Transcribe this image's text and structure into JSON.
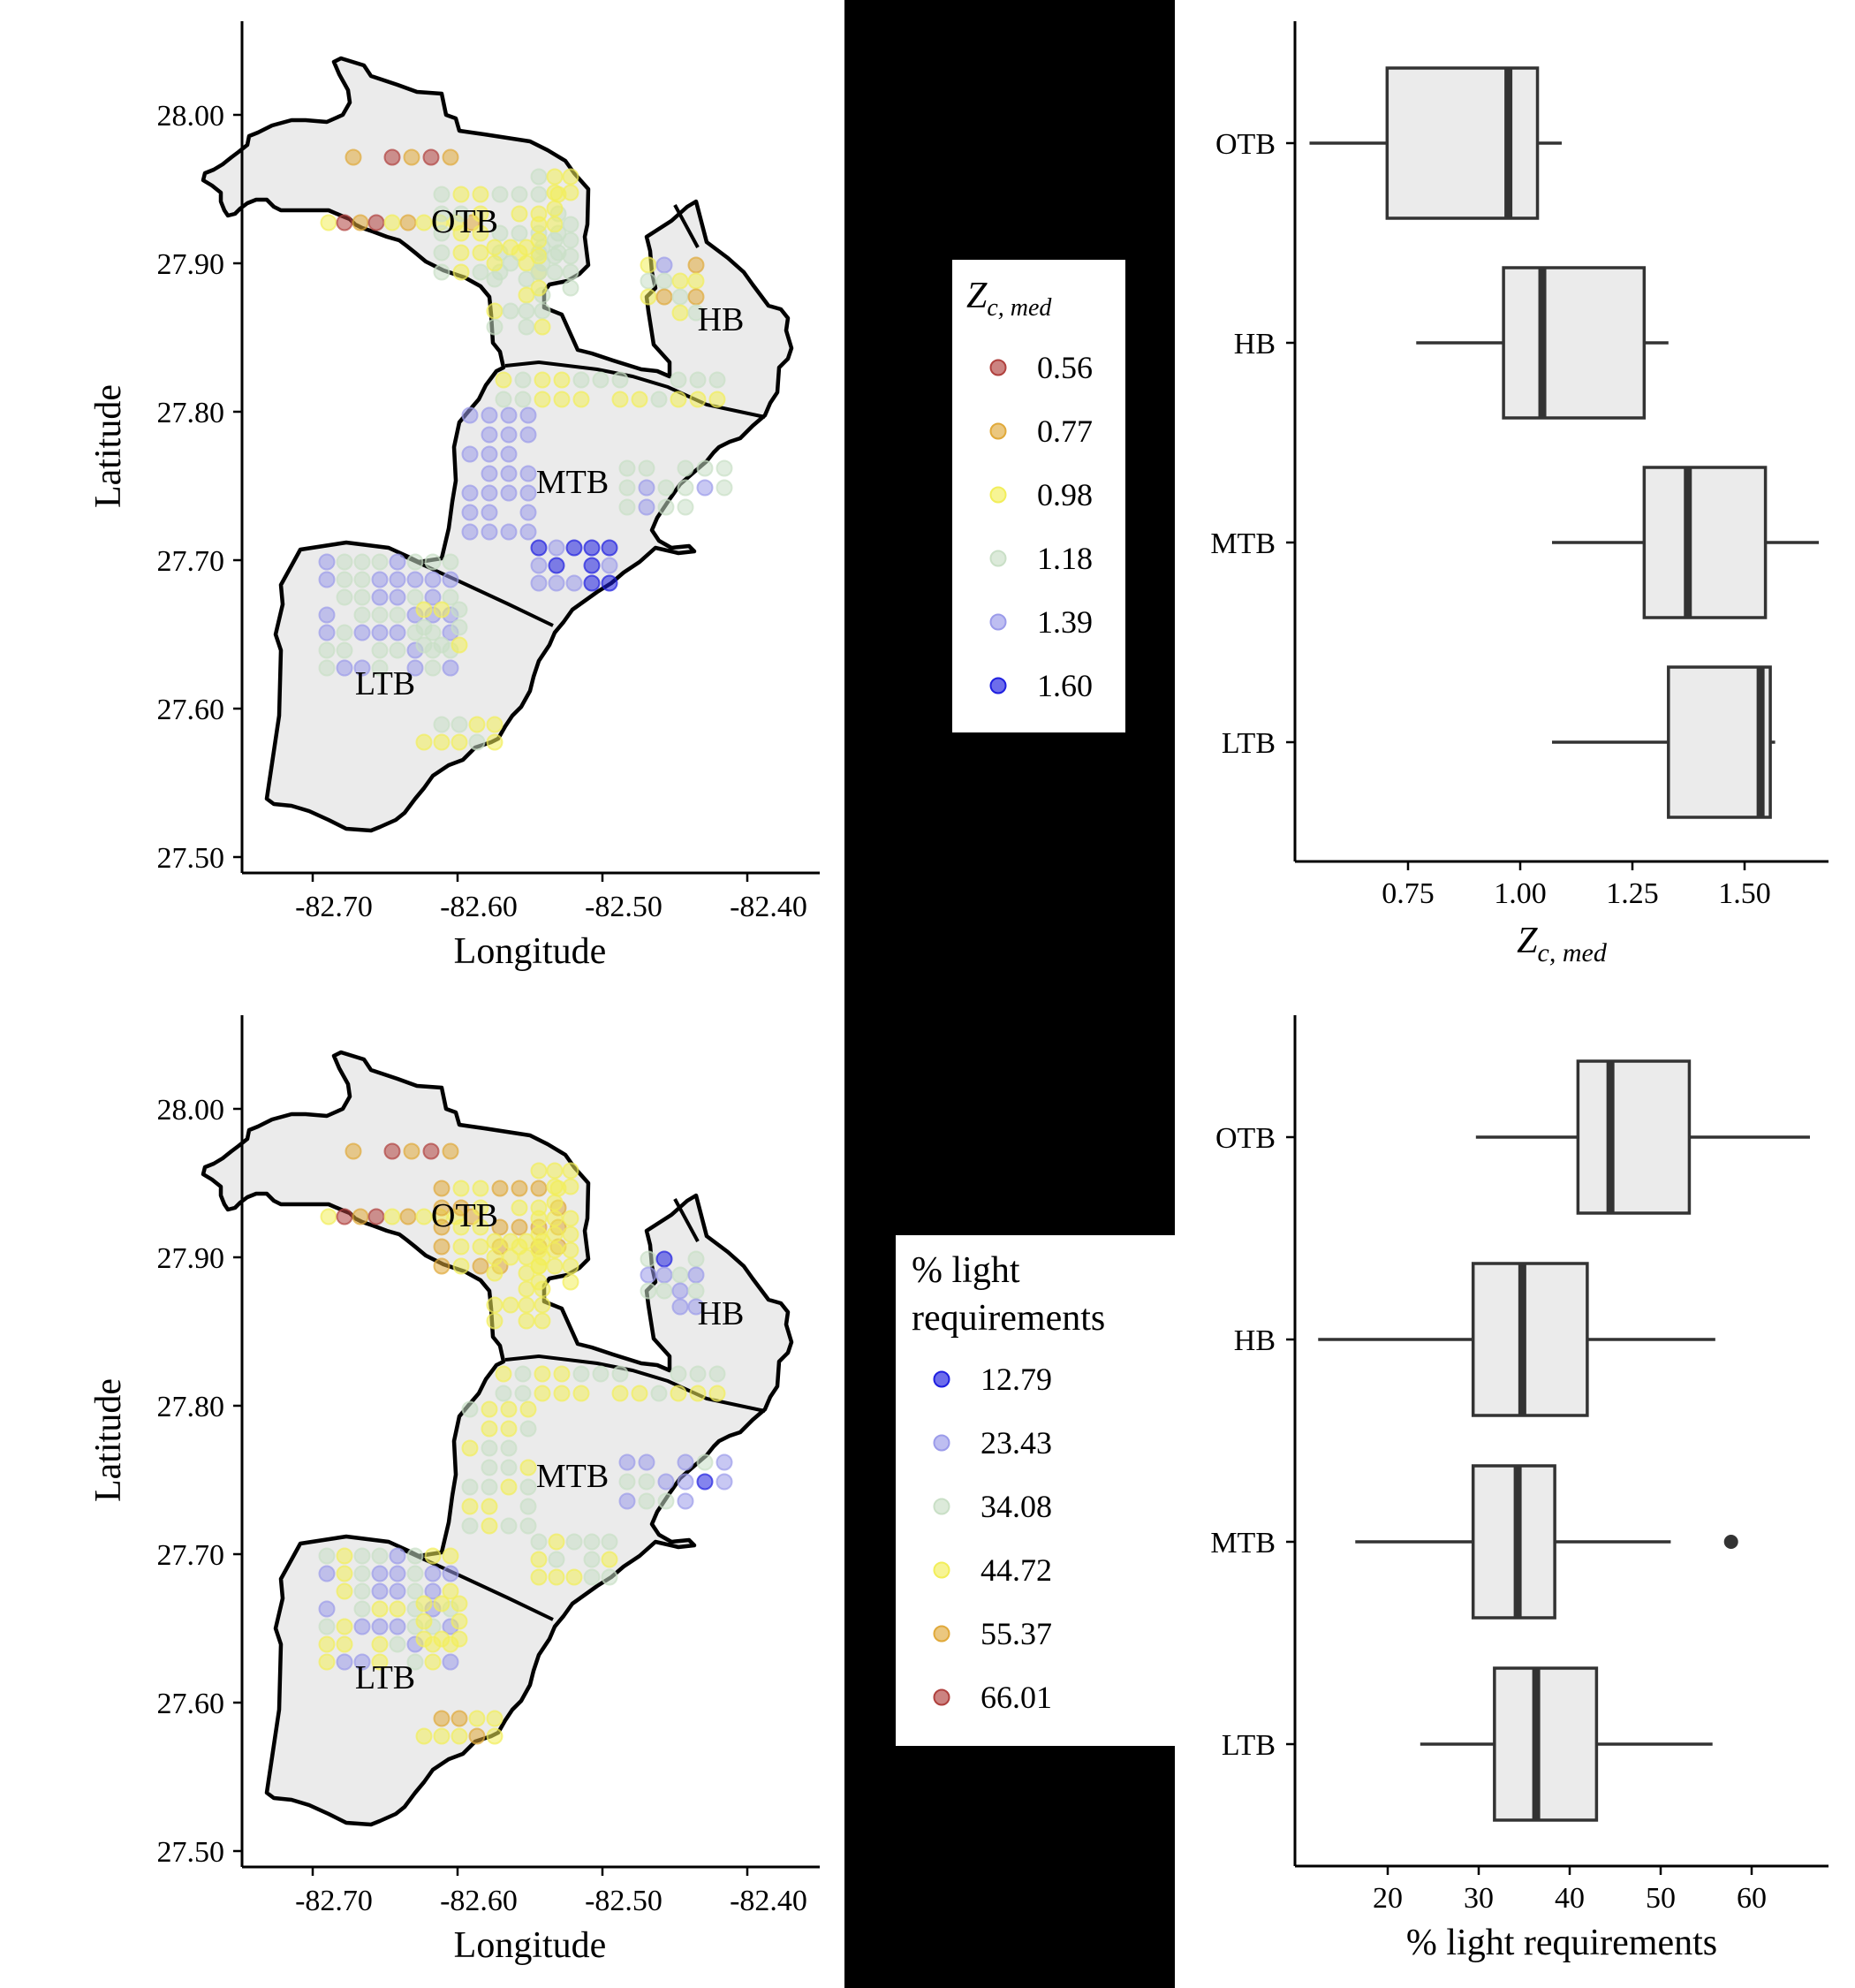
{
  "chart_data": [
    {
      "id": "map_top",
      "type": "scatter",
      "xlabel": "Longitude",
      "ylabel": "Latitude",
      "xlim": [
        -82.76,
        -82.38
      ],
      "ylim": [
        27.49,
        28.06
      ],
      "xticks": [
        "-82.70",
        "-82.60",
        "-82.50",
        "-82.40"
      ],
      "yticks": [
        "27.50",
        "27.60",
        "27.70",
        "27.80",
        "27.90",
        "28.00"
      ],
      "regions": [
        "OTB",
        "HB",
        "MTB",
        "LTB"
      ],
      "legend": {
        "title_main": "Z",
        "title_sub": "c, med",
        "entries": [
          "0.56",
          "0.77",
          "0.98",
          "1.18",
          "1.39",
          "1.60"
        ],
        "colors": [
          "#b0413e",
          "#e0a93a",
          "#f2ee5a",
          "#c9dfc6",
          "#9b9bea",
          "#1f1fe0"
        ]
      }
    },
    {
      "id": "box_top",
      "type": "boxplot",
      "xlabel_main": "Z",
      "xlabel_sub": "c, med",
      "xlim": [
        0.55,
        1.65
      ],
      "xticks": [
        "0.75",
        "1.00",
        "1.25",
        "1.50"
      ],
      "categories": [
        "OTB",
        "HB",
        "MTB",
        "LTB"
      ],
      "boxes": [
        {
          "name": "OTB",
          "min": 0.58,
          "q1": 0.74,
          "median": 0.99,
          "q3": 1.05,
          "max": 1.1
        },
        {
          "name": "HB",
          "min": 0.8,
          "q1": 0.98,
          "median": 1.06,
          "q3": 1.27,
          "max": 1.32
        },
        {
          "name": "MTB",
          "min": 1.08,
          "q1": 1.27,
          "median": 1.36,
          "q3": 1.52,
          "max": 1.63
        },
        {
          "name": "LTB",
          "min": 1.08,
          "q1": 1.32,
          "median": 1.51,
          "q3": 1.53,
          "max": 1.54
        }
      ]
    },
    {
      "id": "map_bottom",
      "type": "scatter",
      "xlabel": "Longitude",
      "ylabel": "Latitude",
      "xlim": [
        -82.76,
        -82.38
      ],
      "ylim": [
        27.49,
        28.06
      ],
      "xticks": [
        "-82.70",
        "-82.60",
        "-82.50",
        "-82.40"
      ],
      "yticks": [
        "27.50",
        "27.60",
        "27.70",
        "27.80",
        "27.90",
        "28.00"
      ],
      "regions": [
        "OTB",
        "HB",
        "MTB",
        "LTB"
      ],
      "legend": {
        "title_lines": [
          "% light",
          "requirements"
        ],
        "entries": [
          "12.79",
          "23.43",
          "34.08",
          "44.72",
          "55.37",
          "66.01"
        ],
        "colors": [
          "#1f1fe0",
          "#9b9bea",
          "#c9dfc6",
          "#f2ee5a",
          "#e0a93a",
          "#b0413e"
        ]
      }
    },
    {
      "id": "box_bottom",
      "type": "boxplot",
      "xlabel": "% light requirements",
      "xlim": [
        10.5,
        68
      ],
      "xticks": [
        "20",
        "30",
        "40",
        "50",
        "60"
      ],
      "categories": [
        "OTB",
        "HB",
        "MTB",
        "LTB"
      ],
      "boxes": [
        {
          "name": "OTB",
          "min": 30,
          "q1": 41,
          "median": 44.5,
          "q3": 53,
          "max": 66
        },
        {
          "name": "HB",
          "min": 13,
          "q1": 29.7,
          "median": 35,
          "q3": 42,
          "max": 55.8
        },
        {
          "name": "MTB",
          "min": 17,
          "q1": 29.7,
          "median": 34.5,
          "q3": 38.5,
          "max": 51,
          "outliers": [
            57.5
          ]
        },
        {
          "name": "LTB",
          "min": 24,
          "q1": 32,
          "median": 36.5,
          "q3": 43,
          "max": 55.5
        }
      ]
    }
  ]
}
